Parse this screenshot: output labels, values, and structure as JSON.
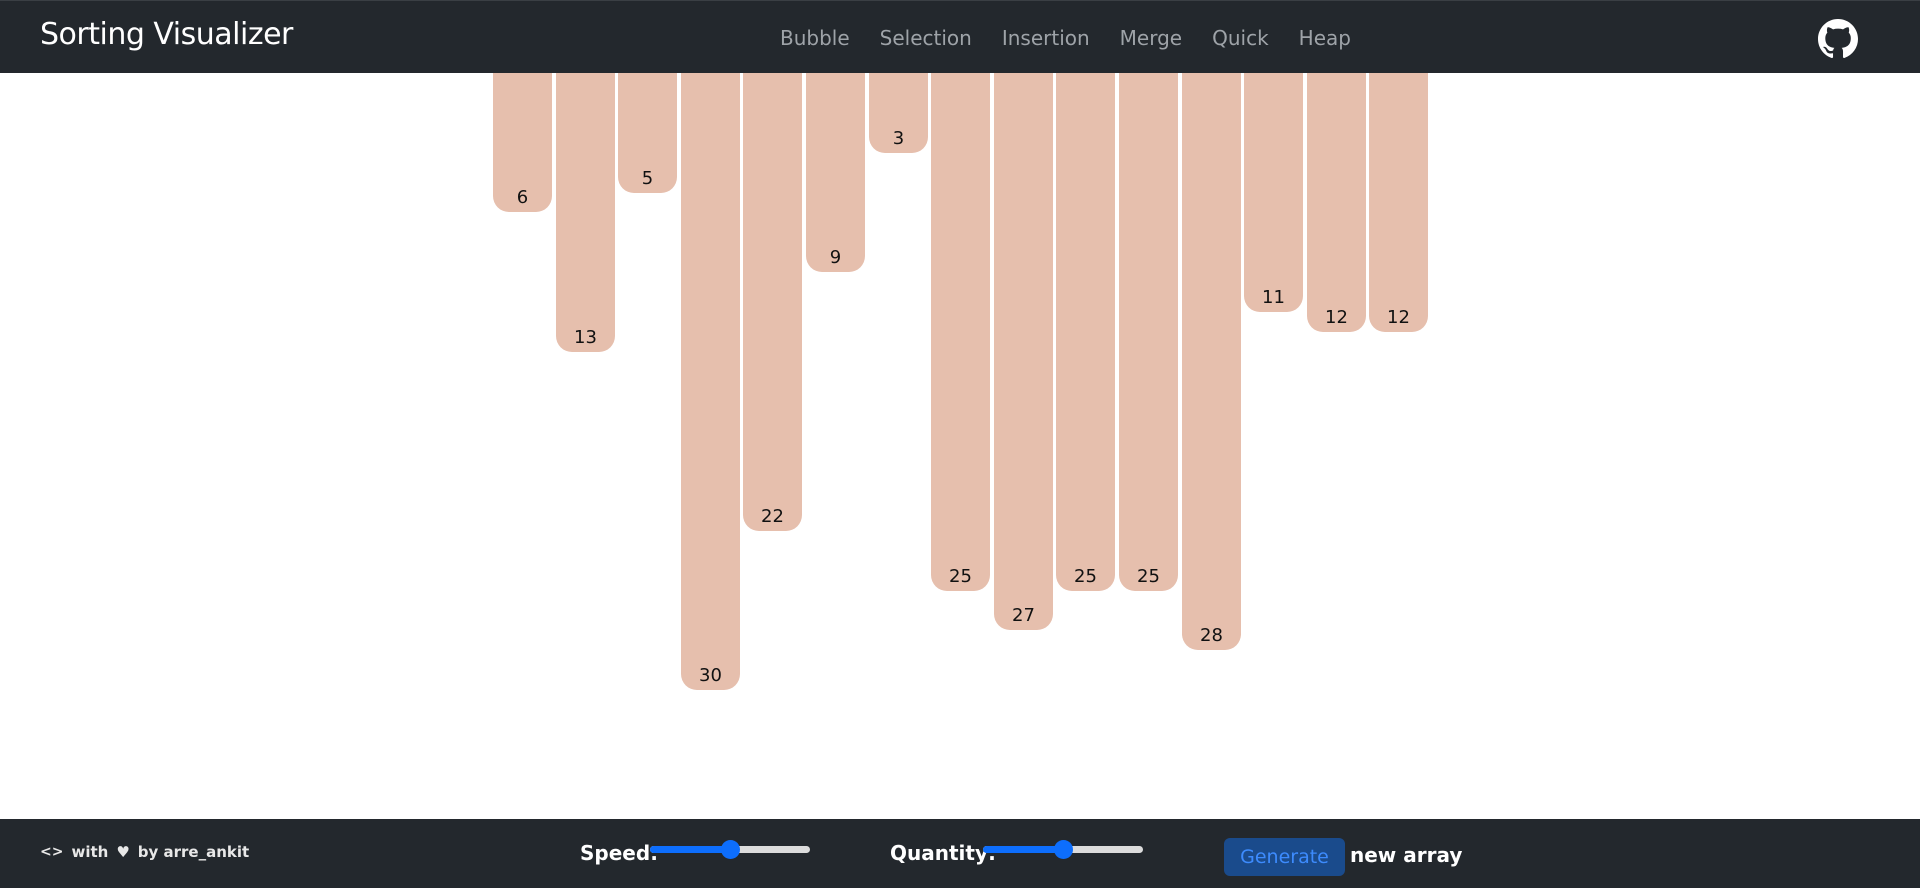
{
  "header": {
    "title": "Sorting Visualizer",
    "nav": [
      "Bubble",
      "Selection",
      "Insertion",
      "Merge",
      "Quick",
      "Heap"
    ],
    "github_icon": "github-icon"
  },
  "array": [
    6,
    13,
    5,
    30,
    22,
    9,
    3,
    25,
    27,
    25,
    25,
    28,
    11,
    12,
    12
  ],
  "colors": {
    "navbar": "#23282d",
    "bar": "#e6bfad",
    "accent": "#0d6efd"
  },
  "footer": {
    "credit_with": "with",
    "credit_by": "by arre_ankit",
    "speed_label": "Speed:",
    "speed_value": 0.5,
    "quantity_label": "Quantity:",
    "quantity_value": 0.5,
    "generate_label": "Generate",
    "generate_suffix": "new array"
  }
}
